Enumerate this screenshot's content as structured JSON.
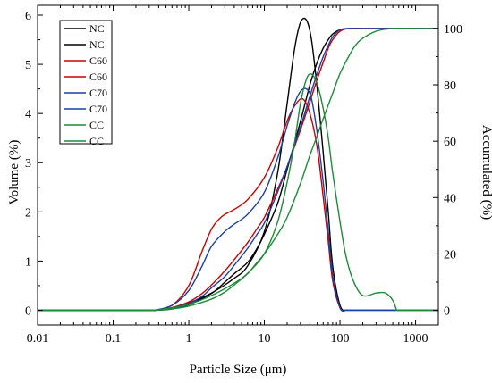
{
  "chart_data": {
    "type": "line",
    "title": "",
    "xlabel": "Particle Size (μm)",
    "ylabel_left": "Volume (%)",
    "ylabel_right": "Accumulated (%)",
    "xscale": "log",
    "xlim": [
      0.01,
      2000
    ],
    "ylim_left": [
      -0.3,
      6.2
    ],
    "ylim_right": [
      -5.2,
      108.2
    ],
    "grid": false,
    "legend_position": "top-left",
    "x_ticks": [
      {
        "value": 0.01,
        "label": "0.01"
      },
      {
        "value": 0.1,
        "label": "0.1"
      },
      {
        "value": 1,
        "label": "1"
      },
      {
        "value": 10,
        "label": "10"
      },
      {
        "value": 100,
        "label": "100"
      },
      {
        "value": 1000,
        "label": "1000"
      }
    ],
    "y_left_ticks": [
      {
        "value": 0,
        "label": "0"
      },
      {
        "value": 1,
        "label": "1"
      },
      {
        "value": 2,
        "label": "2"
      },
      {
        "value": 3,
        "label": "3"
      },
      {
        "value": 4,
        "label": "4"
      },
      {
        "value": 5,
        "label": "5"
      },
      {
        "value": 6,
        "label": "6"
      }
    ],
    "y_right_ticks": [
      {
        "value": 0,
        "label": "0"
      },
      {
        "value": 20,
        "label": "20"
      },
      {
        "value": 40,
        "label": "40"
      },
      {
        "value": 60,
        "label": "60"
      },
      {
        "value": 80,
        "label": "80"
      },
      {
        "value": 100,
        "label": "100"
      }
    ],
    "series": [
      {
        "name": "NC",
        "kind": "volume",
        "axis": "left",
        "color": "#000000",
        "x": [
          0.35,
          0.6,
          1,
          2,
          4,
          6,
          10,
          15,
          20,
          25,
          30,
          36,
          42,
          50,
          60,
          70,
          80,
          100,
          120
        ],
        "y": [
          0,
          0.05,
          0.15,
          0.35,
          0.65,
          0.9,
          1.6,
          2.8,
          4.2,
          5.3,
          5.85,
          5.9,
          5.5,
          4.5,
          3.2,
          2.0,
          0.9,
          0.1,
          0
        ]
      },
      {
        "name": "NC",
        "kind": "accumulated",
        "axis": "right",
        "color": "#000000",
        "x": [
          0.35,
          0.6,
          1,
          2,
          3,
          4,
          6,
          8,
          10,
          15,
          20,
          30,
          40,
          50,
          60,
          70,
          80,
          100,
          130,
          200,
          500,
          2000
        ],
        "y": [
          0,
          0.5,
          2,
          6,
          10,
          13,
          17,
          22,
          27,
          38,
          50,
          67,
          80,
          88,
          93,
          96,
          98,
          99.5,
          100,
          100,
          100,
          100
        ]
      },
      {
        "name": "C60",
        "kind": "volume",
        "axis": "left",
        "color": "#cc0000",
        "x": [
          0.35,
          0.6,
          1,
          1.5,
          2,
          2.5,
          3,
          4,
          6,
          10,
          15,
          20,
          25,
          32,
          40,
          50,
          60,
          70,
          80,
          100,
          120
        ],
        "y": [
          0,
          0.1,
          0.5,
          1.2,
          1.65,
          1.85,
          1.95,
          2.05,
          2.25,
          2.7,
          3.3,
          3.85,
          4.15,
          4.3,
          4.0,
          3.3,
          2.3,
          1.4,
          0.6,
          0.05,
          0
        ]
      },
      {
        "name": "C60",
        "kind": "accumulated",
        "axis": "right",
        "color": "#cc0000",
        "x": [
          0.35,
          0.6,
          1,
          1.5,
          2,
          3,
          4,
          6,
          8,
          10,
          15,
          20,
          30,
          40,
          50,
          60,
          70,
          80,
          100,
          130,
          200,
          2000
        ],
        "y": [
          0,
          1,
          3,
          6,
          9,
          14,
          18,
          24,
          29,
          33,
          43,
          51,
          64,
          74,
          82,
          88,
          93,
          96,
          99,
          100,
          100,
          100
        ]
      },
      {
        "name": "C70",
        "kind": "volume",
        "axis": "left",
        "color": "#1a3fa8",
        "x": [
          0.35,
          0.6,
          1,
          1.5,
          2,
          3,
          4,
          6,
          10,
          15,
          20,
          25,
          30,
          36,
          42,
          50,
          60,
          70,
          80,
          100,
          120
        ],
        "y": [
          0,
          0.1,
          0.4,
          0.9,
          1.3,
          1.6,
          1.75,
          1.95,
          2.4,
          3.1,
          3.75,
          4.2,
          4.45,
          4.5,
          4.3,
          3.6,
          2.6,
          1.6,
          0.7,
          0.05,
          0
        ]
      },
      {
        "name": "C70",
        "kind": "accumulated",
        "axis": "right",
        "color": "#1a3fa8",
        "x": [
          0.35,
          0.6,
          1,
          1.5,
          2,
          3,
          4,
          6,
          8,
          10,
          15,
          20,
          30,
          40,
          50,
          60,
          70,
          80,
          100,
          130,
          200,
          2000
        ],
        "y": [
          0,
          0.8,
          2.5,
          5,
          8,
          12,
          16,
          22,
          27,
          31,
          42,
          51,
          65,
          76,
          84,
          90,
          94,
          97,
          99.5,
          100,
          100,
          100
        ]
      },
      {
        "name": "CC",
        "kind": "volume",
        "axis": "left",
        "color": "#1e8a3a",
        "x": [
          0.35,
          0.6,
          1,
          2,
          4,
          6,
          10,
          15,
          20,
          25,
          30,
          36,
          42,
          50,
          60,
          70,
          80,
          100,
          120,
          150,
          200,
          300,
          400,
          500,
          560
        ],
        "y": [
          0,
          0.05,
          0.12,
          0.3,
          0.55,
          0.75,
          1.15,
          1.8,
          2.6,
          3.4,
          4.2,
          4.7,
          4.8,
          4.6,
          4.1,
          3.5,
          2.8,
          1.8,
          1.1,
          0.6,
          0.3,
          0.35,
          0.35,
          0.2,
          0
        ]
      },
      {
        "name": "CC",
        "kind": "accumulated",
        "axis": "right",
        "color": "#1e8a3a",
        "x": [
          0.35,
          0.6,
          1,
          2,
          3,
          4,
          6,
          8,
          10,
          15,
          20,
          30,
          40,
          50,
          60,
          80,
          100,
          130,
          160,
          200,
          300,
          500,
          1000,
          2000
        ],
        "y": [
          0,
          0.5,
          1.5,
          4,
          6.5,
          9,
          13,
          17,
          20,
          27,
          33,
          45,
          55,
          62,
          68,
          77,
          84,
          90,
          94,
          96.5,
          99,
          100,
          100,
          100
        ]
      }
    ]
  }
}
